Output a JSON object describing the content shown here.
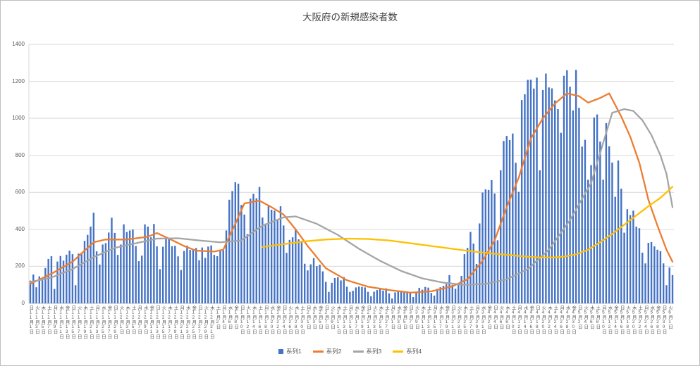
{
  "chart_data": {
    "type": "bar",
    "combo": true,
    "title": "大阪府の新規感染者数",
    "xlabel": "",
    "ylabel": "",
    "ylim": [
      0,
      1400
    ],
    "y_ticks": [
      0,
      200,
      400,
      600,
      800,
      1000,
      1200,
      1400
    ],
    "grid": true,
    "legend_position": "bottom",
    "n_points": 214,
    "x_start_label": "11月1日",
    "x_end_label": "6月2日",
    "x_label_interval_days": 2,
    "points_format": "[day_index_from_Nov1, value]",
    "x_labels": [
      "日11月1日",
      "火11月3日",
      "木11月5日",
      "土11月7日",
      "月11月9日",
      "水11月11日",
      "金11月13日",
      "日11月15日",
      "火11月17日",
      "木11月19日",
      "土11月21日",
      "月11月23日",
      "水11月25日",
      "金11月27日",
      "日11月29日",
      "火12月1日",
      "木12月3日",
      "土12月5日",
      "月12月7日",
      "水12月9日",
      "金12月11日",
      "日12月13日",
      "火12月15日",
      "木12月17日",
      "土12月19日",
      "月12月21日",
      "水12月23日",
      "金12月25日",
      "日12月27日",
      "火12月29日",
      "木12月31日",
      "土1月2日",
      "月1月4日",
      "水1月6日",
      "金1月8日",
      "日1月10日",
      "火1月12日",
      "木1月14日",
      "土1月16日",
      "月1月18日",
      "水1月20日",
      "金1月22日",
      "日1月24日",
      "火1月26日",
      "木1月28日",
      "土1月30日",
      "月2月1日",
      "水2月3日",
      "金2月5日",
      "日2月7日",
      "火2月9日",
      "木2月11日",
      "土2月13日",
      "月2月15日",
      "水2月17日",
      "金2月19日",
      "日2月21日",
      "火2月23日",
      "木2月25日",
      "土2月27日",
      "月3月1日",
      "水3月3日",
      "金3月5日",
      "日3月7日",
      "火3月9日",
      "木3月11日",
      "土3月13日",
      "月3月15日",
      "水3月17日",
      "金3月19日",
      "日3月21日",
      "火3月23日",
      "木3月25日",
      "土3月27日",
      "月3月29日",
      "水3月31日",
      "金4月2日",
      "日4月4日",
      "火4月6日",
      "木4月8日",
      "土4月10日",
      "月4月12日",
      "水4月14日",
      "金4月16日",
      "日4月18日",
      "火4月20日",
      "木4月22日",
      "土4月24日",
      "月4月26日",
      "水4月28日",
      "金4月30日",
      "日5月2日",
      "火5月4日",
      "木5月6日",
      "土5月8日",
      "月5月10日",
      "水5月12日",
      "金5月14日",
      "日5月16日",
      "火5月18日",
      "木5月20日",
      "土5月22日",
      "月5月24日",
      "水5月26日",
      "金5月28日",
      "日5月30日",
      "火6月1日"
    ],
    "series": [
      {
        "name": "系列1",
        "type": "bar",
        "color": "#4472C4",
        "values": [
          123,
          156,
          87,
          146,
          125,
          191,
          240,
          255,
          78,
          226,
          256,
          231,
          263,
          285,
          266,
          98,
          269,
          273,
          338,
          370,
          415,
          490,
          281,
          210,
          318,
          326,
          383,
          463,
          381,
          262,
          318,
          427,
          386,
          394,
          399,
          310,
          228,
          258,
          427,
          415,
          357,
          429,
          308,
          185,
          306,
          351,
          351,
          309,
          311,
          254,
          180,
          283,
          312,
          289,
          294,
          299,
          233,
          302,
          246,
          307,
          313,
          262,
          255,
          286,
          286,
          394,
          560,
          607,
          655,
          647,
          532,
          480,
          374,
          566,
          592,
          568,
          629,
          464,
          431,
          525,
          506,
          501,
          450,
          525,
          421,
          273,
          343,
          357,
          397,
          346,
          338,
          214,
          178,
          211,
          244,
          201,
          209,
          173,
          116,
          62,
          111,
          137,
          141,
          124,
          142,
          90,
          62,
          68,
          86,
          91,
          89,
          86,
          62,
          38,
          63,
          72,
          82,
          69,
          81,
          54,
          26,
          59,
          66,
          69,
          63,
          65,
          56,
          34,
          57,
          84,
          74,
          89,
          85,
          56,
          42,
          79,
          87,
          95,
          105,
          153,
          100,
          79,
          110,
          148,
          266,
          300,
          386,
          323,
          213,
          432,
          599,
          616,
          613,
          666,
          594,
          341,
          719,
          878,
          905,
          883,
          918,
          760,
          603,
          1099,
          1130,
          1208,
          1209,
          1161,
          1220,
          719,
          1153,
          1242,
          1167,
          1162,
          1097,
          1050,
          922,
          1230,
          1260,
          1171,
          1043,
          1262,
          1057,
          847,
          884,
          668,
          747,
          1005,
          1021,
          874,
          668,
          974,
          849,
          761,
          576,
          772,
          620,
          382,
          509,
          477,
          501,
          415,
          406,
          274,
          216,
          327,
          331,
          308,
          290,
          282,
          216,
          98,
          194,
          153
        ]
      },
      {
        "name": "系列2",
        "type": "line",
        "color": "#ED7D31",
        "points": [
          [
            0,
            105
          ],
          [
            7,
            160
          ],
          [
            14,
            225
          ],
          [
            21,
            330
          ],
          [
            25,
            345
          ],
          [
            32,
            345
          ],
          [
            39,
            360
          ],
          [
            42,
            380
          ],
          [
            46,
            350
          ],
          [
            51,
            310
          ],
          [
            55,
            285
          ],
          [
            61,
            280
          ],
          [
            64,
            290
          ],
          [
            68,
            430
          ],
          [
            71,
            540
          ],
          [
            76,
            555
          ],
          [
            80,
            520
          ],
          [
            84,
            480
          ],
          [
            88,
            400
          ],
          [
            92,
            310
          ],
          [
            98,
            190
          ],
          [
            105,
            125
          ],
          [
            112,
            90
          ],
          [
            119,
            72
          ],
          [
            126,
            58
          ],
          [
            133,
            65
          ],
          [
            140,
            92
          ],
          [
            145,
            130
          ],
          [
            150,
            230
          ],
          [
            154,
            340
          ],
          [
            158,
            520
          ],
          [
            162,
            680
          ],
          [
            166,
            890
          ],
          [
            170,
            1000
          ],
          [
            174,
            1080
          ],
          [
            178,
            1135
          ],
          [
            182,
            1120
          ],
          [
            185,
            1085
          ],
          [
            189,
            1110
          ],
          [
            192,
            1135
          ],
          [
            196,
            1010
          ],
          [
            199,
            900
          ],
          [
            202,
            760
          ],
          [
            205,
            560
          ],
          [
            208,
            420
          ],
          [
            211,
            290
          ],
          [
            213,
            225
          ]
        ]
      },
      {
        "name": "系列3",
        "type": "line",
        "color": "#A5A5A5",
        "points": [
          [
            0,
            115
          ],
          [
            7,
            140
          ],
          [
            14,
            185
          ],
          [
            21,
            250
          ],
          [
            28,
            300
          ],
          [
            35,
            325
          ],
          [
            42,
            350
          ],
          [
            49,
            352
          ],
          [
            56,
            340
          ],
          [
            63,
            330
          ],
          [
            70,
            340
          ],
          [
            77,
            420
          ],
          [
            84,
            465
          ],
          [
            88,
            470
          ],
          [
            95,
            430
          ],
          [
            102,
            370
          ],
          [
            109,
            295
          ],
          [
            116,
            230
          ],
          [
            123,
            175
          ],
          [
            130,
            135
          ],
          [
            137,
            112
          ],
          [
            144,
            100
          ],
          [
            151,
            105
          ],
          [
            158,
            130
          ],
          [
            165,
            185
          ],
          [
            172,
            290
          ],
          [
            179,
            450
          ],
          [
            186,
            650
          ],
          [
            193,
            1030
          ],
          [
            197,
            1050
          ],
          [
            200,
            1040
          ],
          [
            203,
            990
          ],
          [
            206,
            910
          ],
          [
            209,
            800
          ],
          [
            211,
            700
          ],
          [
            213,
            520
          ]
        ]
      },
      {
        "name": "系列4",
        "type": "line",
        "color": "#FFC000",
        "points": [
          [
            77,
            305
          ],
          [
            84,
            320
          ],
          [
            91,
            335
          ],
          [
            98,
            345
          ],
          [
            105,
            350
          ],
          [
            112,
            348
          ],
          [
            119,
            340
          ],
          [
            126,
            325
          ],
          [
            133,
            310
          ],
          [
            140,
            295
          ],
          [
            147,
            280
          ],
          [
            154,
            268
          ],
          [
            161,
            258
          ],
          [
            165,
            252
          ],
          [
            169,
            248
          ],
          [
            173,
            248
          ],
          [
            177,
            252
          ],
          [
            181,
            265
          ],
          [
            185,
            290
          ],
          [
            189,
            330
          ],
          [
            193,
            375
          ],
          [
            197,
            425
          ],
          [
            201,
            475
          ],
          [
            205,
            525
          ],
          [
            209,
            570
          ],
          [
            211,
            600
          ],
          [
            213,
            630
          ]
        ]
      }
    ]
  }
}
